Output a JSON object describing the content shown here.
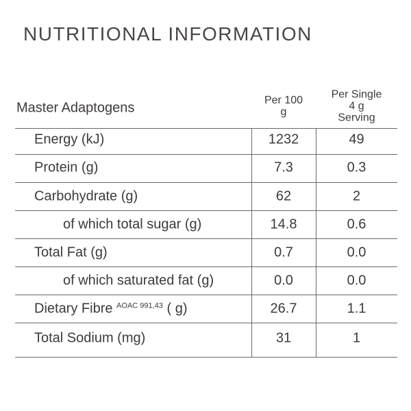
{
  "header": {
    "title": "NUTRITIONAL INFORMATION"
  },
  "table": {
    "columns": [
      "Master Adaptogens",
      "Per 100 g",
      "Per Single 4 g Serving"
    ],
    "rows": [
      [
        "Energy (kJ)",
        "1232",
        "49"
      ],
      [
        "Protein (g)",
        "7.3",
        "0.3"
      ],
      [
        "Carbohydrate (g)",
        "62",
        "2"
      ],
      [
        "of which total sugar (g)",
        "14.8",
        "0.6"
      ],
      [
        "Total Fat (g)",
        "0.7",
        "0.0"
      ],
      [
        "of which saturated fat (g)",
        "0.0",
        "0.0"
      ],
      [
        {
          "label": "Dietary Fibre",
          "superscript": "AOAC 991,43",
          "unit": "( g)"
        },
        "26.7",
        "1.1"
      ],
      [
        "Total Sodium (mg)",
        "31",
        "1"
      ]
    ]
  }
}
